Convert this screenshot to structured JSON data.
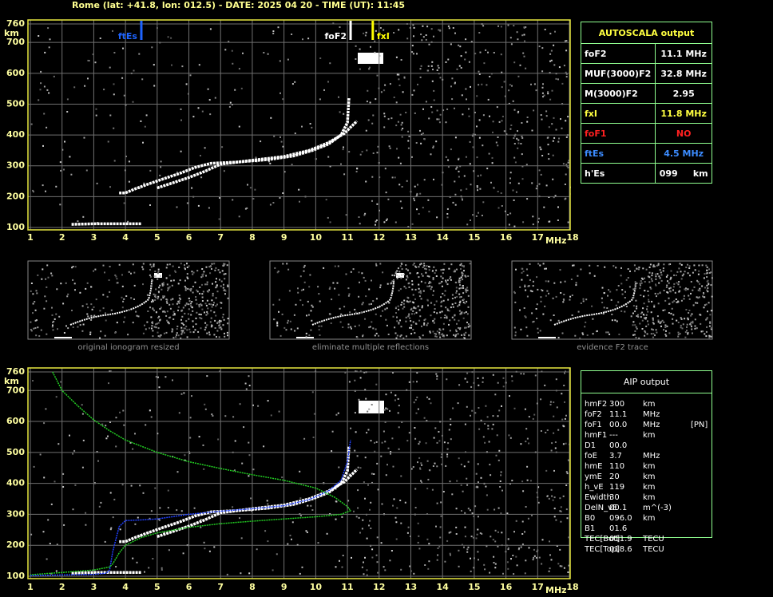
{
  "header": "Rome (lat: +41.8, lon: 012.5) - DATE: 2025 04 20 - TIME (UT): 11:45",
  "chart_data": [
    {
      "type": "line",
      "xlabel": "MHz",
      "ylabel": "km",
      "xlim": [
        1,
        18
      ],
      "xticks": [
        1,
        2,
        3,
        4,
        5,
        6,
        7,
        8,
        9,
        10,
        11,
        12,
        13,
        14,
        15,
        16,
        17,
        18
      ],
      "ylim": [
        100,
        760
      ],
      "yticks": [
        100,
        200,
        300,
        400,
        500,
        600,
        700,
        760
      ],
      "grid": true,
      "series": [
        {
          "color": "#ffffff",
          "x": [
            3.8,
            4.0,
            4.3,
            4.7,
            5.2,
            5.7,
            6.2,
            6.7,
            7.5,
            8.5,
            9.3,
            9.9,
            10.4,
            10.8,
            11.0,
            11.05
          ],
          "values": [
            212,
            212,
            225,
            240,
            258,
            275,
            295,
            308,
            312,
            320,
            332,
            350,
            370,
            400,
            440,
            520
          ]
        },
        {
          "color": "#ffffff",
          "x": [
            5.0,
            5.5,
            6.0,
            6.5,
            7.0,
            8.0,
            9.0,
            9.8,
            10.4,
            10.9,
            11.3
          ],
          "values": [
            228,
            245,
            262,
            282,
            305,
            318,
            330,
            350,
            375,
            405,
            445
          ]
        },
        {
          "color": "#ffffff",
          "x": [
            2.3,
            3.0,
            3.5,
            4.0,
            4.5
          ],
          "values": [
            110,
            112,
            112,
            112,
            112
          ]
        }
      ],
      "markers": [
        {
          "label": "ftEs",
          "value": 4.5,
          "color": "#1e64ff"
        },
        {
          "label": "foF2",
          "value": 11.1,
          "color": "#ffffff"
        },
        {
          "label": "fxI",
          "value": 11.8,
          "color": "#ffff00"
        }
      ]
    },
    {
      "type": "line",
      "xlabel": "MHz",
      "ylabel": "km",
      "xlim": [
        1,
        18
      ],
      "xticks": [
        1,
        2,
        3,
        4,
        5,
        6,
        7,
        8,
        9,
        10,
        11,
        12,
        13,
        14,
        15,
        16,
        17,
        18
      ],
      "ylim": [
        100,
        760
      ],
      "yticks": [
        100,
        200,
        300,
        400,
        500,
        600,
        700,
        760
      ],
      "grid": true,
      "series": [
        {
          "color": "#ffffff",
          "x": [
            3.8,
            4.0,
            4.3,
            4.7,
            5.2,
            5.7,
            6.2,
            6.7,
            7.5,
            8.5,
            9.3,
            9.9,
            10.4,
            10.8,
            11.0,
            11.05
          ],
          "values": [
            212,
            212,
            225,
            240,
            258,
            275,
            295,
            308,
            312,
            320,
            332,
            350,
            370,
            400,
            440,
            520
          ]
        },
        {
          "color": "#ffffff",
          "x": [
            5.0,
            5.5,
            6.0,
            6.5,
            7.0,
            8.0,
            9.0,
            9.8,
            10.4,
            10.9,
            11.3
          ],
          "values": [
            228,
            245,
            262,
            282,
            305,
            318,
            330,
            350,
            375,
            405,
            445
          ]
        },
        {
          "color": "#ffffff",
          "x": [
            2.3,
            3.0,
            3.5,
            4.0,
            4.5
          ],
          "values": [
            110,
            112,
            112,
            112,
            112
          ]
        },
        {
          "color": "#2040ff",
          "x": [
            1.0,
            2.0,
            3.0,
            3.4,
            3.5,
            3.6,
            3.8,
            4.0,
            4.5,
            5.0,
            6.0,
            7.0,
            8.0,
            9.0,
            9.8,
            10.4,
            10.8,
            11.0,
            11.1
          ],
          "values": [
            102,
            104,
            106,
            110,
            120,
            180,
            260,
            280,
            282,
            285,
            300,
            310,
            318,
            328,
            348,
            375,
            410,
            470,
            540
          ]
        },
        {
          "color": "#22cc22",
          "x": [
            1.7,
            2.0,
            2.5,
            3.0,
            3.5,
            4.0,
            5.0,
            6.0,
            7.0,
            8.0,
            9.0,
            10.0,
            10.6,
            11.0,
            11.1,
            10.8,
            10.0,
            9.0,
            8.0,
            7.0,
            6.0,
            5.0,
            4.5,
            4.0,
            3.8,
            3.6,
            3.5,
            3.0,
            2.0,
            1.0
          ],
          "values": [
            760,
            700,
            650,
            605,
            570,
            540,
            500,
            470,
            448,
            428,
            410,
            385,
            355,
            325,
            312,
            300,
            292,
            285,
            278,
            270,
            258,
            240,
            225,
            200,
            175,
            140,
            130,
            120,
            112,
            105
          ]
        }
      ]
    }
  ],
  "autoscala": {
    "title": "AUTOSCALA output",
    "rows": [
      [
        "foF2",
        "11.1 MHz"
      ],
      [
        "MUF(3000)F2",
        "32.8 MHz"
      ],
      [
        "M(3000)F2",
        "2.95"
      ],
      [
        "fxI",
        "11.8 MHz"
      ],
      [
        "foF1",
        "NO"
      ],
      [
        "ftEs",
        "4.5 MHz"
      ],
      [
        "h'Es",
        "099     km"
      ]
    ]
  },
  "thumbnails": {
    "captions": [
      "original ionogram resized",
      "eliminate multiple reflections",
      "evidence F2 trace"
    ]
  },
  "aip": {
    "title": "AIP output",
    "rows": [
      [
        "hmF2",
        "300",
        "km"
      ],
      [
        "foF2",
        "11.1",
        "MHz"
      ],
      [
        "foF1",
        "00.0",
        "MHz",
        "[PN]"
      ],
      [
        "hmF1",
        "---",
        "km"
      ],
      [
        "D1",
        "00.0"
      ],
      [
        "foE",
        "3.7",
        "MHz"
      ],
      [
        "hmE",
        "110",
        "km"
      ],
      [
        "ymE",
        "20",
        "km"
      ],
      [
        "h_vE",
        "119",
        "km"
      ],
      [
        "Ewidth",
        "30",
        "km"
      ],
      [
        "DelN_vE",
        "00.1",
        "m^(-3)"
      ],
      [
        "B0",
        "096.0",
        "km"
      ],
      [
        "B1",
        "01.6"
      ],
      [
        "TEC[Bot]",
        "011.9",
        "TECU"
      ],
      [
        "TEC[Top]",
        "018.6",
        "TECU"
      ]
    ]
  }
}
